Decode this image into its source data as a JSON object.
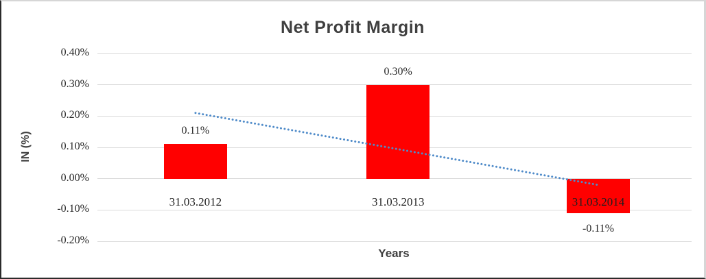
{
  "chart": {
    "title": "Net Profit Margin",
    "ylabel": "IN (%)",
    "xlabel": "Years",
    "bar_color": "#FF0000",
    "trendline_color": "#4F8BC9",
    "gridline_color": "#D9D9D9"
  },
  "chart_data": {
    "type": "bar",
    "title": "Net Profit Margin",
    "xlabel": "Years",
    "ylabel": "IN (%)",
    "categories": [
      "31.03.2012",
      "31.03.2013",
      "31.03.2014"
    ],
    "series": [
      {
        "name": "Net Profit Margin",
        "color": "#FF0000",
        "values": [
          0.11,
          0.3,
          -0.11
        ]
      }
    ],
    "values": [
      0.11,
      0.3,
      -0.11
    ],
    "data_labels": [
      "0.11%",
      "0.30%",
      "-0.11%"
    ],
    "ylim": [
      -0.2,
      0.4
    ],
    "ytick_values": [
      0.4,
      0.3,
      0.2,
      0.1,
      0.0,
      -0.1,
      -0.2
    ],
    "ytick_labels": [
      "0.40%",
      "0.30%",
      "0.20%",
      "0.10%",
      "0.00%",
      "-0.10%",
      "-0.20%"
    ],
    "grid": true,
    "legend": "none",
    "trendline": {
      "type": "linear",
      "style": "dotted",
      "color": "#4F8BC9",
      "start_value": 0.21,
      "end_value": -0.02
    }
  }
}
